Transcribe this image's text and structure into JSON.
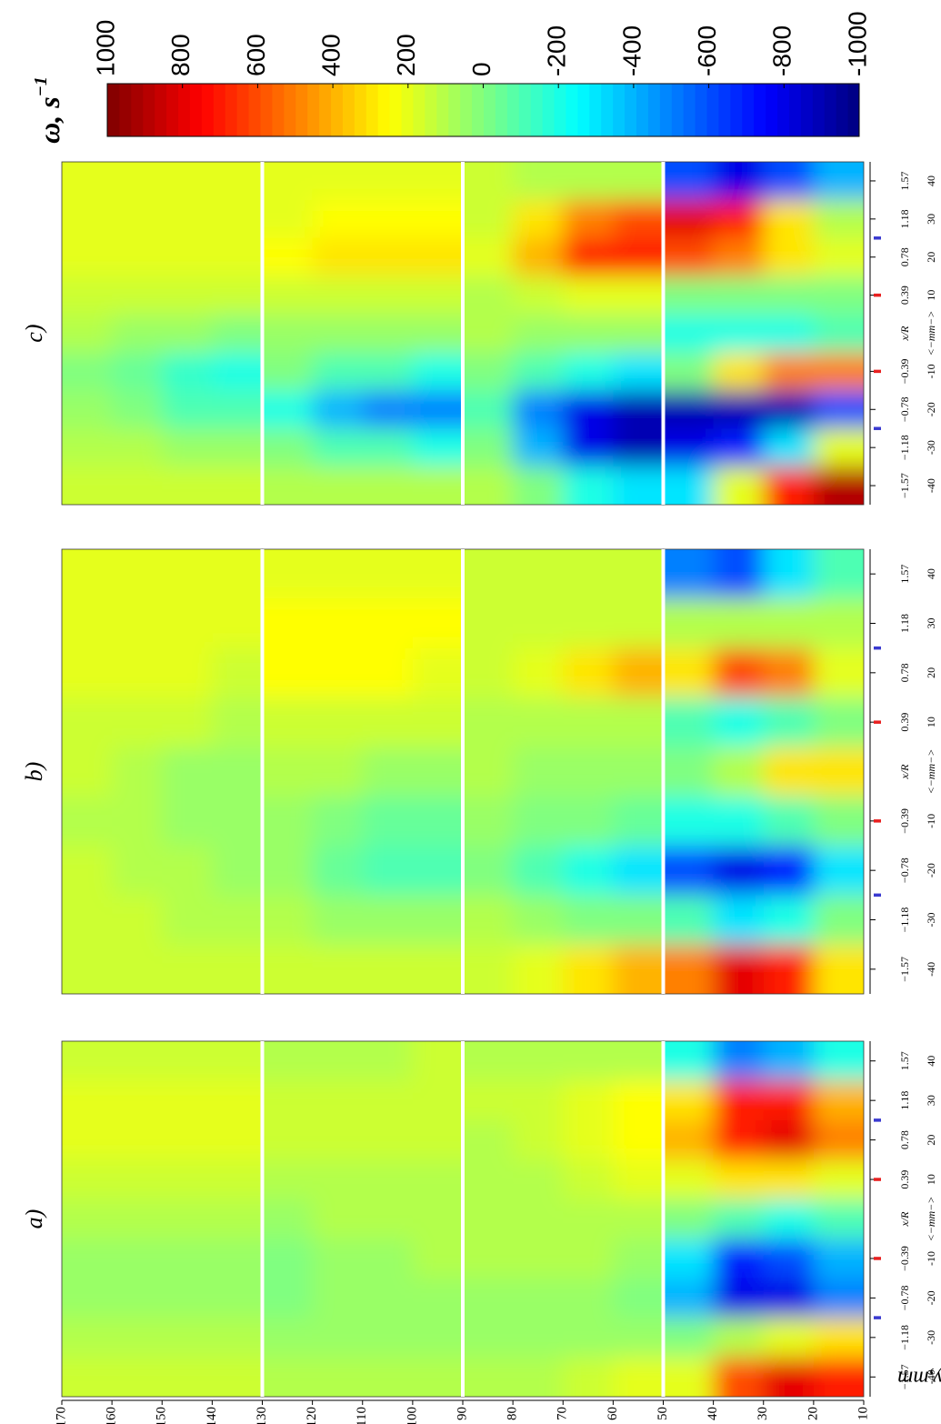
{
  "chart_data": {
    "type": "heatmap",
    "colormap": "jet",
    "y_label": "y,mm",
    "ylim": [
      10,
      170
    ],
    "yticks": [
      170,
      160,
      150,
      140,
      130,
      120,
      110,
      100,
      90,
      80,
      70,
      60,
      50,
      40,
      30,
      20,
      10
    ],
    "xlim": [
      -45,
      45
    ],
    "xticks": [
      -40,
      -30,
      -20,
      -10,
      10,
      20,
      30,
      40
    ],
    "xticks_r": [
      {
        "value": -40,
        "label": "−1.57"
      },
      {
        "value": -30,
        "label": "−1.18"
      },
      {
        "value": -20,
        "label": "−0.78"
      },
      {
        "value": -10,
        "label": "−0.39"
      },
      {
        "value": 10,
        "label": "0.39"
      },
      {
        "value": 20,
        "label": "0.78"
      },
      {
        "value": 30,
        "label": "1.18"
      },
      {
        "value": 40,
        "label": "1.57"
      }
    ],
    "x_label": "x/R",
    "x_sublabel": "<−mm−>",
    "markers": [
      {
        "value": -25,
        "color": "#3a3ad0"
      },
      {
        "value": -10,
        "color": "#e82020"
      },
      {
        "value": 10,
        "color": "#e82020"
      },
      {
        "value": 25,
        "color": "#3a3ad0"
      }
    ],
    "zlabel": "ω, s",
    "zlabel_sup": "−1",
    "zlim": [
      -1000,
      1000
    ],
    "zticks": [
      1000,
      800,
      600,
      400,
      200,
      0,
      -200,
      -400,
      -600,
      -800,
      -1000
    ],
    "panels": [
      {
        "title": "a)",
        "strips": [
          [
            [
              150,
              100,
              50,
              50,
              100,
              150,
              200,
              200,
              150
            ],
            [
              150,
              100,
              50,
              50,
              100,
              150,
              200,
              200,
              150
            ],
            [
              150,
              100,
              50,
              50,
              100,
              150,
              200,
              200,
              150
            ],
            [
              150,
              100,
              50,
              50,
              100,
              150,
              200,
              200,
              150
            ]
          ],
          [
            [
              100,
              50,
              0,
              0,
              50,
              100,
              150,
              150,
              100
            ],
            [
              100,
              50,
              50,
              50,
              100,
              100,
              150,
              150,
              100
            ],
            [
              100,
              50,
              50,
              50,
              100,
              100,
              150,
              150,
              100
            ],
            [
              100,
              50,
              50,
              100,
              100,
              100,
              150,
              150,
              150
            ]
          ],
          [
            [
              100,
              50,
              50,
              100,
              100,
              100,
              100,
              150,
              100
            ],
            [
              100,
              50,
              50,
              100,
              100,
              100,
              150,
              150,
              100
            ],
            [
              150,
              50,
              50,
              100,
              100,
              150,
              200,
              200,
              100
            ],
            [
              200,
              50,
              0,
              50,
              100,
              200,
              250,
              250,
              100
            ]
          ],
          [
            [
              200,
              0,
              -400,
              -300,
              0,
              200,
              400,
              300,
              -200
            ],
            [
              600,
              100,
              -800,
              -700,
              -100,
              300,
              700,
              700,
              -500
            ],
            [
              800,
              200,
              -800,
              -600,
              -200,
              300,
              800,
              700,
              -400
            ],
            [
              700,
              300,
              -500,
              -400,
              -100,
              200,
              500,
              400,
              -200
            ]
          ]
        ]
      },
      {
        "title": "b)",
        "strips": [
          [
            [
              150,
              150,
              150,
              100,
              150,
              150,
              200,
              200,
              200
            ],
            [
              150,
              150,
              100,
              100,
              100,
              150,
              200,
              200,
              200
            ],
            [
              150,
              100,
              100,
              50,
              50,
              150,
              200,
              200,
              200
            ],
            [
              150,
              100,
              50,
              50,
              50,
              100,
              150,
              200,
              200
            ]
          ],
          [
            [
              150,
              100,
              50,
              50,
              100,
              150,
              250,
              250,
              200
            ],
            [
              150,
              50,
              -50,
              0,
              100,
              150,
              250,
              250,
              200
            ],
            [
              150,
              50,
              -100,
              -50,
              50,
              150,
              250,
              250,
              200
            ],
            [
              150,
              50,
              -100,
              -50,
              50,
              150,
              200,
              250,
              200
            ]
          ],
          [
            [
              150,
              100,
              0,
              50,
              100,
              100,
              150,
              150,
              150
            ],
            [
              200,
              50,
              -100,
              0,
              50,
              100,
              200,
              150,
              150
            ],
            [
              300,
              0,
              -200,
              0,
              50,
              100,
              300,
              150,
              150
            ],
            [
              400,
              0,
              -300,
              -50,
              50,
              100,
              400,
              150,
              150
            ]
          ],
          [
            [
              500,
              -100,
              -600,
              -200,
              0,
              -100,
              300,
              100,
              -500
            ],
            [
              800,
              -300,
              -800,
              -200,
              100,
              -200,
              600,
              100,
              -600
            ],
            [
              700,
              -200,
              -700,
              -100,
              300,
              -100,
              500,
              100,
              -300
            ],
            [
              300,
              0,
              -300,
              0,
              300,
              0,
              200,
              100,
              -100
            ]
          ]
        ]
      },
      {
        "title": "c)",
        "strips": [
          [
            [
              150,
              100,
              50,
              0,
              100,
              150,
              200,
              200,
              200
            ],
            [
              150,
              100,
              0,
              -50,
              50,
              150,
              200,
              200,
              200
            ],
            [
              150,
              50,
              -100,
              -150,
              50,
              150,
              200,
              200,
              200
            ],
            [
              150,
              50,
              -100,
              -200,
              0,
              150,
              200,
              200,
              200
            ]
          ],
          [
            [
              100,
              0,
              -200,
              0,
              50,
              150,
              250,
              200,
              200
            ],
            [
              100,
              -100,
              -400,
              -100,
              50,
              150,
              300,
              250,
              200
            ],
            [
              100,
              -100,
              -500,
              -100,
              50,
              150,
              300,
              250,
              200
            ],
            [
              100,
              -200,
              -500,
              -200,
              50,
              150,
              300,
              250,
              200
            ]
          ],
          [
            [
              100,
              0,
              -100,
              0,
              100,
              100,
              200,
              150,
              150
            ],
            [
              0,
              -400,
              -500,
              -100,
              50,
              150,
              400,
              300,
              100
            ],
            [
              -200,
              -800,
              -800,
              -200,
              50,
              200,
              700,
              500,
              100
            ],
            [
              -300,
              -900,
              -900,
              -300,
              50,
              200,
              700,
              600,
              100
            ]
          ],
          [
            [
              -300,
              -800,
              -900,
              0,
              -200,
              0,
              600,
              800,
              -600
            ],
            [
              200,
              -700,
              -900,
              300,
              -200,
              0,
              500,
              700,
              -800
            ],
            [
              700,
              -300,
              -900,
              500,
              -200,
              0,
              300,
              300,
              -600
            ],
            [
              900,
              200,
              -600,
              500,
              -100,
              0,
              200,
              100,
              -400
            ]
          ]
        ]
      }
    ]
  }
}
